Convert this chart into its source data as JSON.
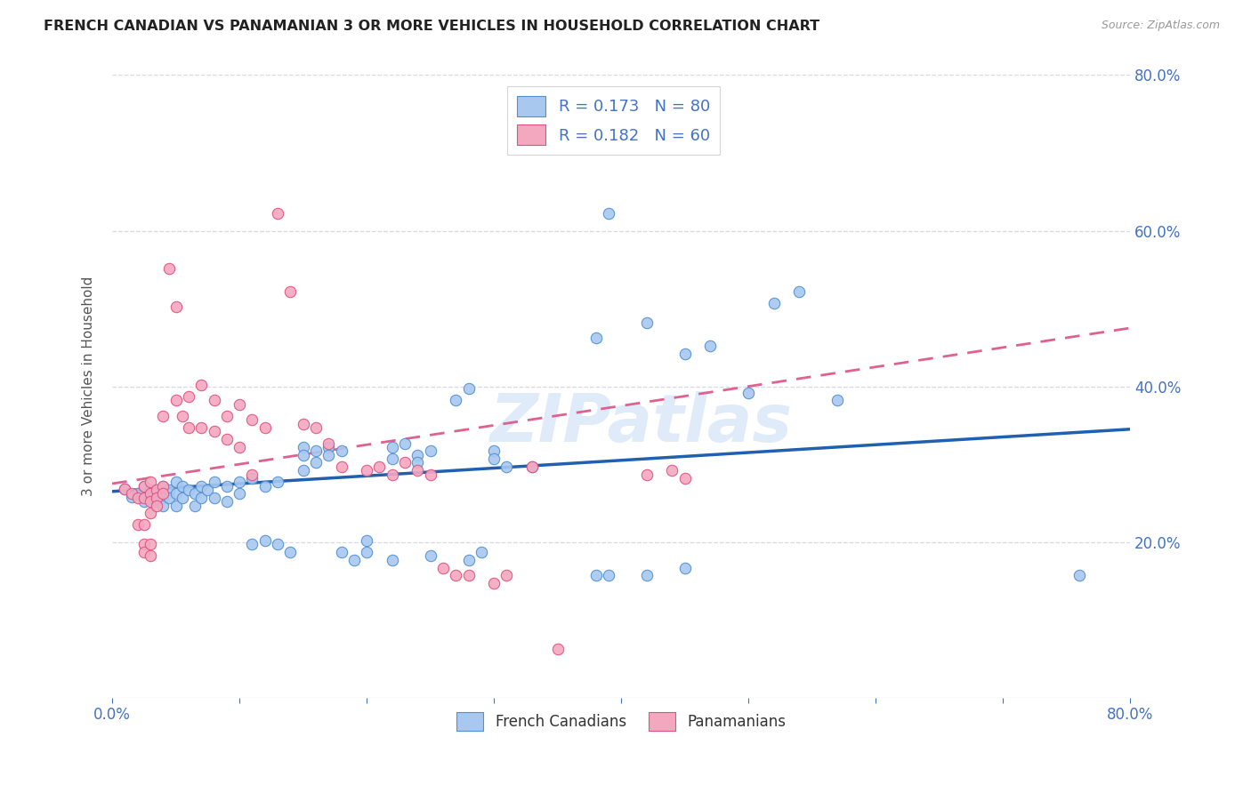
{
  "title": "FRENCH CANADIAN VS PANAMANIAN 3 OR MORE VEHICLES IN HOUSEHOLD CORRELATION CHART",
  "source": "Source: ZipAtlas.com",
  "ylabel": "3 or more Vehicles in Household",
  "xlim": [
    0.0,
    0.8
  ],
  "ylim": [
    0.0,
    0.8
  ],
  "xtick_vals": [
    0.0,
    0.1,
    0.2,
    0.3,
    0.4,
    0.5,
    0.6,
    0.7,
    0.8
  ],
  "xtick_edge_labels": {
    "0": "0.0%",
    "8": "80.0%"
  },
  "ytick_vals": [
    0.0,
    0.2,
    0.4,
    0.6,
    0.8
  ],
  "right_ytick_vals": [
    0.2,
    0.4,
    0.6,
    0.8
  ],
  "right_ytick_labels": [
    "20.0%",
    "40.0%",
    "60.0%",
    "80.0%"
  ],
  "french_R": 0.173,
  "french_N": 80,
  "panama_R": 0.182,
  "panama_N": 60,
  "french_color": "#a8c8f0",
  "panama_color": "#f4a8c0",
  "french_edge_color": "#5090d0",
  "panama_edge_color": "#e05080",
  "french_line_color": "#2060b0",
  "panama_line_color": "#e06090",
  "background_color": "#ffffff",
  "grid_color": "#d8d8e8",
  "tick_label_color": "#4472c4",
  "french_trend": [
    0.0,
    0.265,
    0.8,
    0.345
  ],
  "panama_trend": [
    0.0,
    0.275,
    0.8,
    0.475
  ],
  "french_scatter": [
    [
      0.01,
      0.268
    ],
    [
      0.015,
      0.258
    ],
    [
      0.02,
      0.262
    ],
    [
      0.025,
      0.272
    ],
    [
      0.025,
      0.252
    ],
    [
      0.03,
      0.267
    ],
    [
      0.03,
      0.257
    ],
    [
      0.035,
      0.262
    ],
    [
      0.035,
      0.252
    ],
    [
      0.04,
      0.272
    ],
    [
      0.04,
      0.257
    ],
    [
      0.04,
      0.247
    ],
    [
      0.045,
      0.267
    ],
    [
      0.045,
      0.257
    ],
    [
      0.05,
      0.277
    ],
    [
      0.05,
      0.262
    ],
    [
      0.05,
      0.247
    ],
    [
      0.055,
      0.272
    ],
    [
      0.055,
      0.257
    ],
    [
      0.06,
      0.267
    ],
    [
      0.065,
      0.262
    ],
    [
      0.065,
      0.247
    ],
    [
      0.07,
      0.272
    ],
    [
      0.07,
      0.257
    ],
    [
      0.075,
      0.267
    ],
    [
      0.08,
      0.277
    ],
    [
      0.08,
      0.257
    ],
    [
      0.09,
      0.272
    ],
    [
      0.09,
      0.252
    ],
    [
      0.1,
      0.277
    ],
    [
      0.1,
      0.262
    ],
    [
      0.11,
      0.282
    ],
    [
      0.11,
      0.197
    ],
    [
      0.12,
      0.272
    ],
    [
      0.12,
      0.202
    ],
    [
      0.13,
      0.277
    ],
    [
      0.13,
      0.197
    ],
    [
      0.14,
      0.187
    ],
    [
      0.15,
      0.322
    ],
    [
      0.15,
      0.312
    ],
    [
      0.15,
      0.292
    ],
    [
      0.16,
      0.317
    ],
    [
      0.16,
      0.302
    ],
    [
      0.17,
      0.322
    ],
    [
      0.17,
      0.312
    ],
    [
      0.18,
      0.317
    ],
    [
      0.18,
      0.187
    ],
    [
      0.19,
      0.177
    ],
    [
      0.2,
      0.202
    ],
    [
      0.2,
      0.187
    ],
    [
      0.22,
      0.322
    ],
    [
      0.22,
      0.307
    ],
    [
      0.22,
      0.177
    ],
    [
      0.23,
      0.327
    ],
    [
      0.24,
      0.312
    ],
    [
      0.24,
      0.302
    ],
    [
      0.25,
      0.317
    ],
    [
      0.25,
      0.182
    ],
    [
      0.27,
      0.382
    ],
    [
      0.28,
      0.397
    ],
    [
      0.28,
      0.177
    ],
    [
      0.29,
      0.187
    ],
    [
      0.3,
      0.317
    ],
    [
      0.3,
      0.307
    ],
    [
      0.31,
      0.297
    ],
    [
      0.33,
      0.297
    ],
    [
      0.38,
      0.462
    ],
    [
      0.38,
      0.157
    ],
    [
      0.39,
      0.622
    ],
    [
      0.39,
      0.157
    ],
    [
      0.42,
      0.482
    ],
    [
      0.42,
      0.157
    ],
    [
      0.45,
      0.442
    ],
    [
      0.45,
      0.167
    ],
    [
      0.47,
      0.452
    ],
    [
      0.5,
      0.392
    ],
    [
      0.52,
      0.507
    ],
    [
      0.54,
      0.522
    ],
    [
      0.57,
      0.382
    ],
    [
      0.76,
      0.157
    ]
  ],
  "panama_scatter": [
    [
      0.01,
      0.268
    ],
    [
      0.015,
      0.262
    ],
    [
      0.02,
      0.257
    ],
    [
      0.02,
      0.222
    ],
    [
      0.025,
      0.272
    ],
    [
      0.025,
      0.257
    ],
    [
      0.025,
      0.222
    ],
    [
      0.025,
      0.197
    ],
    [
      0.025,
      0.187
    ],
    [
      0.03,
      0.277
    ],
    [
      0.03,
      0.262
    ],
    [
      0.03,
      0.252
    ],
    [
      0.03,
      0.237
    ],
    [
      0.03,
      0.197
    ],
    [
      0.03,
      0.182
    ],
    [
      0.035,
      0.267
    ],
    [
      0.035,
      0.257
    ],
    [
      0.035,
      0.247
    ],
    [
      0.04,
      0.272
    ],
    [
      0.04,
      0.262
    ],
    [
      0.04,
      0.362
    ],
    [
      0.045,
      0.552
    ],
    [
      0.05,
      0.502
    ],
    [
      0.05,
      0.382
    ],
    [
      0.055,
      0.362
    ],
    [
      0.06,
      0.387
    ],
    [
      0.06,
      0.347
    ],
    [
      0.07,
      0.402
    ],
    [
      0.07,
      0.347
    ],
    [
      0.08,
      0.382
    ],
    [
      0.08,
      0.342
    ],
    [
      0.09,
      0.362
    ],
    [
      0.09,
      0.332
    ],
    [
      0.1,
      0.377
    ],
    [
      0.1,
      0.322
    ],
    [
      0.11,
      0.357
    ],
    [
      0.11,
      0.287
    ],
    [
      0.12,
      0.347
    ],
    [
      0.13,
      0.622
    ],
    [
      0.14,
      0.522
    ],
    [
      0.15,
      0.352
    ],
    [
      0.16,
      0.347
    ],
    [
      0.17,
      0.327
    ],
    [
      0.18,
      0.297
    ],
    [
      0.2,
      0.292
    ],
    [
      0.21,
      0.297
    ],
    [
      0.22,
      0.287
    ],
    [
      0.23,
      0.302
    ],
    [
      0.24,
      0.292
    ],
    [
      0.25,
      0.287
    ],
    [
      0.26,
      0.167
    ],
    [
      0.27,
      0.157
    ],
    [
      0.28,
      0.157
    ],
    [
      0.3,
      0.147
    ],
    [
      0.31,
      0.157
    ],
    [
      0.33,
      0.297
    ],
    [
      0.35,
      0.062
    ],
    [
      0.42,
      0.287
    ],
    [
      0.44,
      0.292
    ],
    [
      0.45,
      0.282
    ]
  ]
}
